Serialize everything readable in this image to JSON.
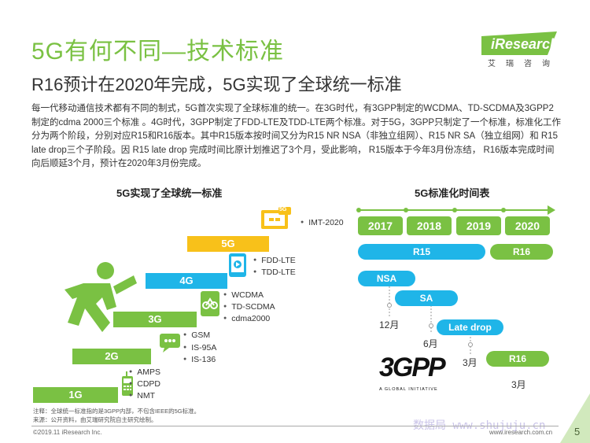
{
  "page": {
    "title": "5G有何不同—技术标准",
    "subtitle": "R16预计在2020年完成，5G实现了全球统一标准",
    "description": "每一代移动通信技术都有不同的制式，5G首次实现了全球标准的统一。在3G时代，有3GPP制定的WCDMA、TD-SCDMA及3GPP2制定的cdma 2000三个标准 。4G时代，3GPP制定了FDD-LTE及TDD-LTE两个标准。对于5G，3GPP只制定了一个标准，标准化工作分为两个阶段，分别对应R15和R16版本。其中R15版本按时间又分为R15 NR NSA（非独立组网）、R15 NR SA（独立组网）和 R15 late drop三个子阶段。因 R15 late drop 完成时间比原计划推迟了3个月，受此影响， R15版本于今年3月份冻结， R16版本完成时间向后顺延3个月，预计在2020年3月份完成。",
    "logo": "iResearch",
    "logo_sub": "艾瑞咨询",
    "footnote_1": "注释：全球统一标准指的是3GPP内部，不包含IEEE的5G标准。",
    "footnote_2": "来源：公开资料，由艾瑞研究院自主研究绘制。",
    "copyright": "©2019.11 iResearch Inc.",
    "site": "www.iresearch.com.cn",
    "page_number": "5",
    "watermark": "数据局 www.shujuju.cn"
  },
  "left": {
    "title": "5G实现了全球统一标准",
    "steps": [
      {
        "label": "1G",
        "standards": [
          "AMPS",
          "CDPD",
          "NMT"
        ]
      },
      {
        "label": "2G",
        "standards": [
          "GSM",
          "IS-95A",
          "IS-136"
        ]
      },
      {
        "label": "3G",
        "standards": [
          "WCDMA",
          "TD-SCDMA",
          "cdma2000"
        ]
      },
      {
        "label": "4G",
        "standards": [
          "FDD-LTE",
          "TDD-LTE"
        ]
      },
      {
        "label": "5G",
        "standards": [
          "IMT-2020"
        ]
      }
    ],
    "icon_badge": "5G"
  },
  "right": {
    "title": "5G标准化时间表",
    "years": [
      "2017",
      "2018",
      "2019",
      "2020"
    ],
    "bars": [
      "R15",
      "NSA",
      "SA",
      "Late drop",
      "R16",
      "R16"
    ],
    "notes": [
      "12月",
      "6月",
      "3月",
      "3月"
    ],
    "logo_3gpp": "3GPP",
    "logo_tagline": "A GLOBAL INITIATIVE"
  },
  "colors": {
    "green": "#7ac143",
    "blue": "#1fb5e8",
    "yellow": "#f8c11a",
    "gray": "#888888"
  }
}
